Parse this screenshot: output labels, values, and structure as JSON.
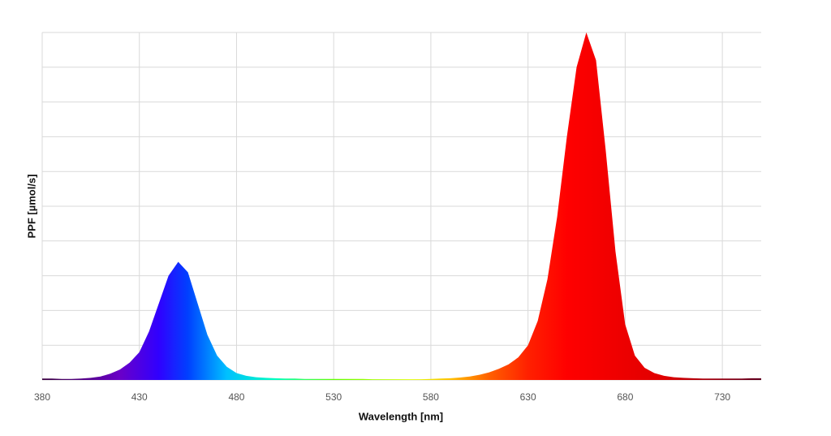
{
  "chart_data": {
    "type": "area",
    "x_label": "Wavelength [nm]",
    "y_label": "PPF [µmol/s]",
    "x": [
      380,
      385,
      390,
      395,
      400,
      405,
      410,
      415,
      420,
      425,
      430,
      435,
      440,
      445,
      450,
      455,
      460,
      465,
      470,
      475,
      480,
      485,
      490,
      495,
      500,
      505,
      510,
      515,
      520,
      525,
      530,
      535,
      540,
      545,
      550,
      555,
      560,
      565,
      570,
      575,
      580,
      585,
      590,
      595,
      600,
      605,
      610,
      615,
      620,
      625,
      630,
      635,
      640,
      645,
      650,
      655,
      660,
      665,
      670,
      675,
      680,
      685,
      690,
      695,
      700,
      705,
      710,
      715,
      720,
      725,
      730,
      735,
      740,
      745,
      750
    ],
    "values": [
      0.004,
      0.004,
      0.003,
      0.003,
      0.004,
      0.006,
      0.01,
      0.018,
      0.03,
      0.05,
      0.08,
      0.14,
      0.22,
      0.3,
      0.34,
      0.31,
      0.22,
      0.13,
      0.07,
      0.038,
      0.02,
      0.012,
      0.008,
      0.006,
      0.005,
      0.004,
      0.004,
      0.003,
      0.003,
      0.003,
      0.003,
      0.003,
      0.003,
      0.003,
      0.002,
      0.002,
      0.002,
      0.002,
      0.002,
      0.002,
      0.003,
      0.004,
      0.005,
      0.007,
      0.01,
      0.015,
      0.022,
      0.032,
      0.045,
      0.065,
      0.1,
      0.17,
      0.29,
      0.47,
      0.7,
      0.9,
      1.0,
      0.92,
      0.66,
      0.37,
      0.16,
      0.07,
      0.035,
      0.02,
      0.012,
      0.008,
      0.006,
      0.005,
      0.004,
      0.004,
      0.004,
      0.004,
      0.004,
      0.005,
      0.005
    ],
    "xlim": [
      380,
      750
    ],
    "xticks": [
      380,
      430,
      480,
      530,
      580,
      630,
      680,
      730
    ],
    "ylim": [
      0,
      1
    ],
    "ygrid": [
      0,
      0.1,
      0.2,
      0.3,
      0.4,
      0.5,
      0.6,
      0.7,
      0.8,
      0.9,
      1
    ],
    "grid": true,
    "gradient": [
      {
        "x": 380,
        "color": "#3a0040"
      },
      {
        "x": 420,
        "color": "#6a00c8"
      },
      {
        "x": 440,
        "color": "#3000ff"
      },
      {
        "x": 455,
        "color": "#0040ff"
      },
      {
        "x": 475,
        "color": "#00c0ff"
      },
      {
        "x": 500,
        "color": "#00ffc0"
      },
      {
        "x": 530,
        "color": "#60ff00"
      },
      {
        "x": 570,
        "color": "#e0ff00"
      },
      {
        "x": 590,
        "color": "#ffc000"
      },
      {
        "x": 610,
        "color": "#ff6000"
      },
      {
        "x": 630,
        "color": "#ff2000"
      },
      {
        "x": 650,
        "color": "#ff0000"
      },
      {
        "x": 700,
        "color": "#e00000"
      },
      {
        "x": 750,
        "color": "#600020"
      }
    ]
  }
}
